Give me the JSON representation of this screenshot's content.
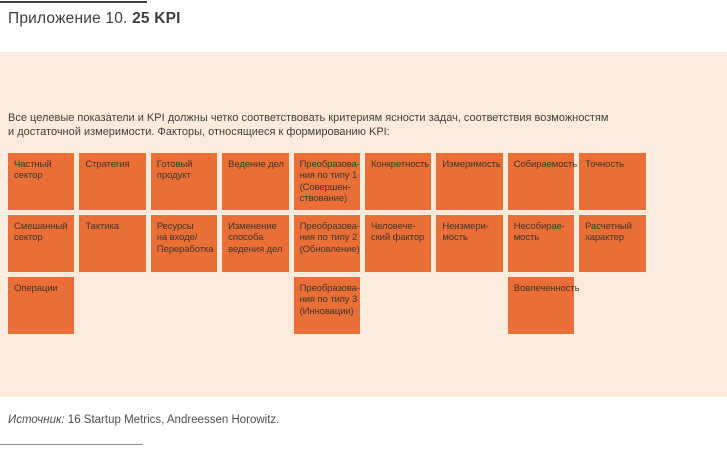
{
  "page": {
    "title": {
      "prefix": "Приложение 10. ",
      "emphasis": "25 KPI"
    },
    "intro_text": "Все целевые показатели и KPI должны четко соответствовать критериям ясности задач, соответствия возможностям\nи достаточной измеримости. Факторы, относящиеся к формированию KPI:",
    "source": {
      "label": "Источник:",
      "text": " 16 Startup Metrics, Andreessen Horowitz."
    }
  },
  "colors": {
    "panel_background": "#fcebdd",
    "cell_background": "#e96f36",
    "cell_text": "#3e352c",
    "body_text": "#43403b"
  },
  "kpi_grid": {
    "columns": 9,
    "rows": 3,
    "cells": [
      [
        "Частный\nсектор",
        "Стратегия",
        "Готовый\nпродукт",
        "Ведение дел",
        "Преобразова-\nния по типу 1\n(Совершен-\nствование)",
        "Конкретность",
        "Измеримость",
        "Собираемость",
        "Точность"
      ],
      [
        "Смешанный\nсектор",
        "Тактика",
        "Ресурсы\nна входе/\nПереработка",
        "Изменение\nспособа\nведения дел",
        "Преобразова-\nния по типу 2\n(Обновление)",
        "Человече-\nский фактор",
        "Неизмери-\nмость",
        "Несобирае-\nмость",
        "Расчетный\nхарактер"
      ],
      [
        "Операции",
        "",
        "",
        "",
        "Преобразова-\nния по типу 3\n(Инновации)",
        "",
        "",
        "Вовлеченность",
        ""
      ]
    ]
  }
}
